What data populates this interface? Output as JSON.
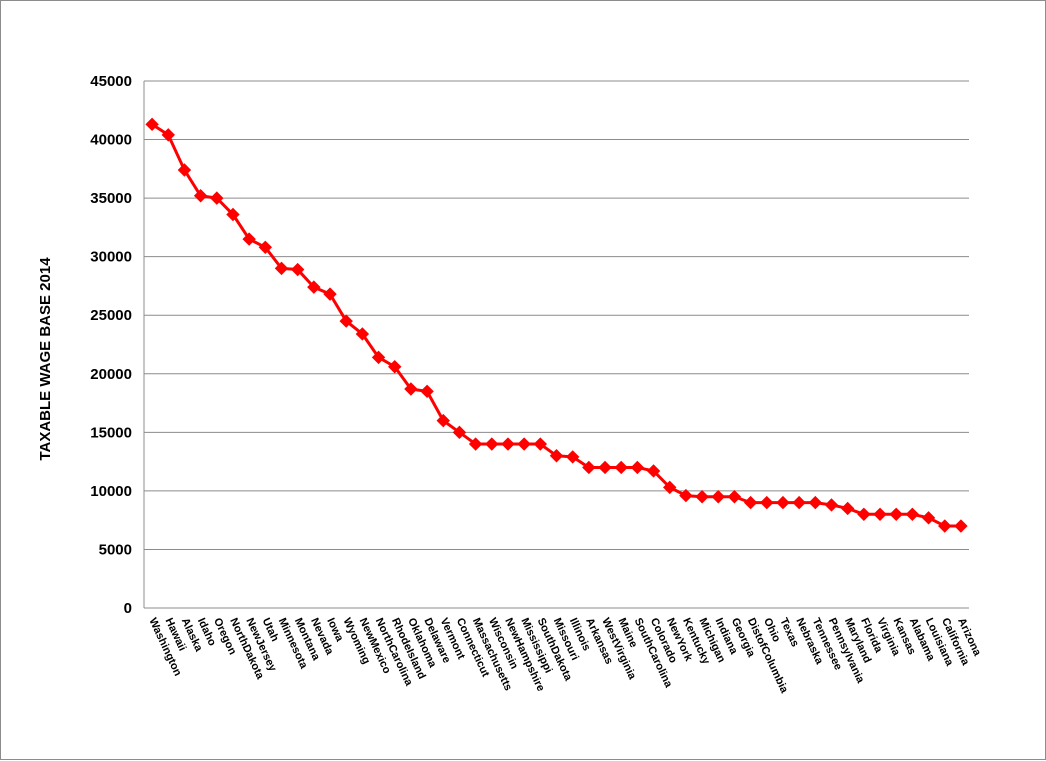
{
  "chart_data": {
    "type": "line",
    "title": "",
    "xlabel": "",
    "ylabel": "TAXABLE WAGE BASE 2014",
    "ylim": [
      0,
      45000
    ],
    "yticks": [
      0,
      5000,
      10000,
      15000,
      20000,
      25000,
      30000,
      35000,
      40000,
      45000
    ],
    "grid": true,
    "legend": "none",
    "colors": {
      "series": "#ff0000",
      "grid": "#8c8c8c"
    },
    "marker": "diamond",
    "categories": [
      "Washington",
      "Hawaii",
      "Alaska",
      "Idaho",
      "Oregon",
      "NorthDakota",
      "NewJersey",
      "Utah",
      "Minnesota",
      "Montana",
      "Nevada",
      "Iowa",
      "Wyoming",
      "NewMexico",
      "NorthCarolina",
      "RhodeIsland",
      "Oklahoma",
      "Delaware",
      "Vermont",
      "Connecticut",
      "Massachusetts",
      "Wisconsin",
      "NewHampshire",
      "Mississippi",
      "SouthDakota",
      "Missouri",
      "Illinois",
      "Arkansas",
      "WestVirginia",
      "Maine",
      "SouthCarolina",
      "Colorado",
      "NewYork",
      "Kentucky",
      "Michigan",
      "Indiana",
      "Georgia",
      "DistofColumbia",
      "Ohio",
      "Texas",
      "Nebraska",
      "Tennessee",
      "Pennsylvania",
      "Maryland",
      "Florida",
      "Virginia",
      "Kansas",
      "Alabama",
      "Louisiana",
      "California",
      "Arizona"
    ],
    "series": [
      {
        "values": [
          41300,
          40400,
          37400,
          35200,
          35000,
          33600,
          31500,
          30800,
          29000,
          28900,
          27400,
          26800,
          24500,
          23400,
          21400,
          20600,
          18700,
          18500,
          16000,
          15000,
          14000,
          14000,
          14000,
          14000,
          14000,
          13000,
          12900,
          12000,
          12000,
          12000,
          12000,
          11700,
          10300,
          9600,
          9500,
          9500,
          9500,
          9000,
          9000,
          9000,
          9000,
          9000,
          8800,
          8500,
          8000,
          8000,
          8000,
          8000,
          7700,
          7000,
          7000
        ]
      }
    ]
  }
}
